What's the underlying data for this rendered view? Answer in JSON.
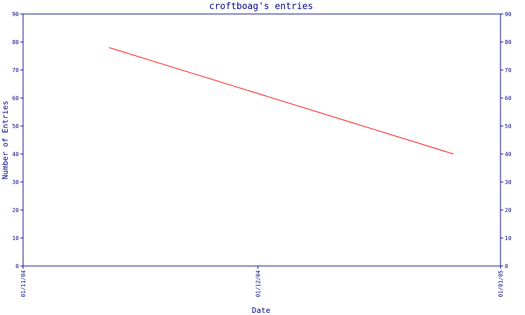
{
  "chart_data": {
    "type": "line",
    "title": "croftboag's entries",
    "xlabel": "Date",
    "ylabel": "Number of Entries",
    "x_tick_labels": [
      "01/11/04",
      "01/12/04",
      "01/01/05"
    ],
    "y_ticks": [
      0,
      10,
      20,
      30,
      40,
      50,
      60,
      70,
      80,
      90
    ],
    "ylim": [
      0,
      90
    ],
    "xlim": [
      "2004-11-01",
      "2005-01-01"
    ],
    "grid": false,
    "series": [
      {
        "color": "#ff0000",
        "x": [
          "2004-11-12",
          "2004-12-26"
        ],
        "y": [
          78,
          40
        ]
      }
    ],
    "colors": {
      "axis": "#000080",
      "line": "#ff0000",
      "background": "#ffffff"
    }
  }
}
